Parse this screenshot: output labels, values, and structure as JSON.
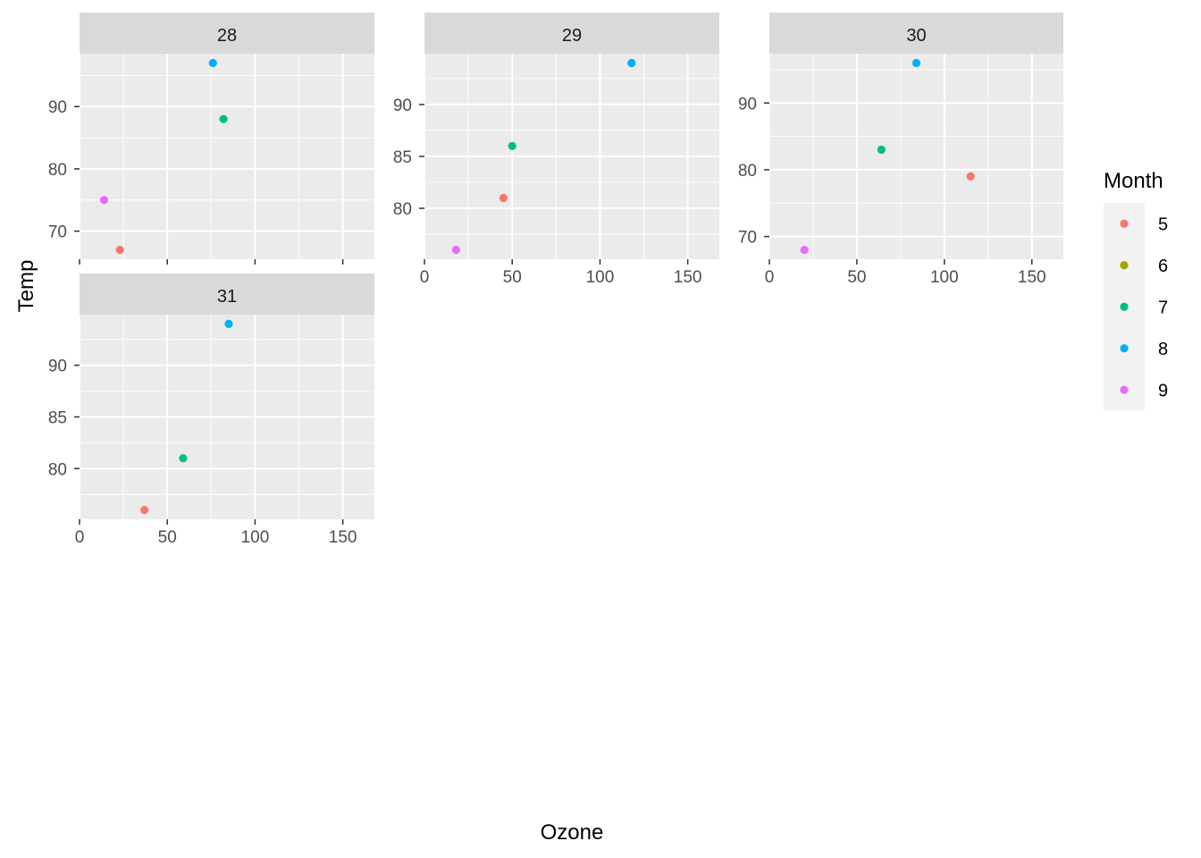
{
  "chart_data": {
    "type": "scatter",
    "x_label": "Ozone",
    "y_label": "Temp",
    "facet_variable": "Day",
    "facet_scales": "free_y",
    "grid": true,
    "x_range": [
      0,
      168
    ],
    "x_ticks": [
      0,
      50,
      100,
      150
    ],
    "legend": {
      "title": "Month",
      "position": "right",
      "entries": [
        {
          "label": "5",
          "color": "#F8766D"
        },
        {
          "label": "6",
          "color": "#A3A500"
        },
        {
          "label": "7",
          "color": "#00BF7D"
        },
        {
          "label": "8",
          "color": "#00B0F6"
        },
        {
          "label": "9",
          "color": "#E76BF3"
        }
      ]
    },
    "facets": [
      {
        "label": "28",
        "y_range": [
          65.5,
          98.5
        ],
        "y_ticks": [
          70,
          80,
          90
        ],
        "points": [
          {
            "month": "5",
            "x": 23,
            "y": 67
          },
          {
            "month": "7",
            "x": 82,
            "y": 88
          },
          {
            "month": "8",
            "x": 76,
            "y": 97
          },
          {
            "month": "9",
            "x": 14,
            "y": 75
          }
        ]
      },
      {
        "label": "29",
        "y_range": [
          75.1,
          94.9
        ],
        "y_ticks": [
          80,
          85,
          90
        ],
        "points": [
          {
            "month": "5",
            "x": 45,
            "y": 81
          },
          {
            "month": "7",
            "x": 50,
            "y": 86
          },
          {
            "month": "8",
            "x": 118,
            "y": 94
          },
          {
            "month": "9",
            "x": 18,
            "y": 76
          }
        ]
      },
      {
        "label": "30",
        "y_range": [
          66.6,
          97.4
        ],
        "y_ticks": [
          70,
          80,
          90
        ],
        "points": [
          {
            "month": "5",
            "x": 115,
            "y": 79
          },
          {
            "month": "7",
            "x": 64,
            "y": 83
          },
          {
            "month": "8",
            "x": 84,
            "y": 96
          },
          {
            "month": "9",
            "x": 20,
            "y": 68
          }
        ]
      },
      {
        "label": "31",
        "y_range": [
          75.1,
          94.9
        ],
        "y_ticks": [
          80,
          85,
          90
        ],
        "points": [
          {
            "month": "5",
            "x": 37,
            "y": 76
          },
          {
            "month": "7",
            "x": 59,
            "y": 81
          },
          {
            "month": "8",
            "x": 85,
            "y": 94
          }
        ]
      }
    ]
  }
}
